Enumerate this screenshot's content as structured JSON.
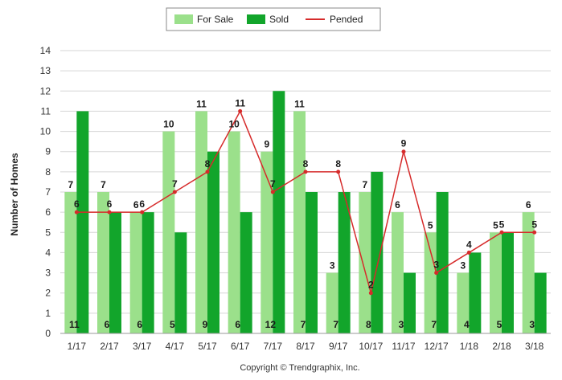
{
  "chart_data": {
    "type": "bar",
    "ylabel": "Number of Homes",
    "xlabel": "",
    "ylim": [
      0,
      14
    ],
    "yticks": [
      0,
      1,
      2,
      3,
      4,
      5,
      6,
      7,
      8,
      9,
      10,
      11,
      12,
      13,
      14
    ],
    "grid": true,
    "legend_position": "top-center",
    "categories": [
      "1/17",
      "2/17",
      "3/17",
      "4/17",
      "5/17",
      "6/17",
      "7/17",
      "8/17",
      "9/17",
      "10/17",
      "11/17",
      "12/17",
      "1/18",
      "2/18",
      "3/18"
    ],
    "series": [
      {
        "name": "For Sale",
        "kind": "bar",
        "color": "#9be08b",
        "values": [
          7,
          7,
          6,
          10,
          11,
          10,
          9,
          11,
          3,
          7,
          6,
          5,
          3,
          5,
          6
        ]
      },
      {
        "name": "Sold",
        "kind": "bar",
        "color": "#12a52b",
        "values": [
          11,
          6,
          6,
          5,
          9,
          6,
          12,
          7,
          7,
          8,
          3,
          7,
          4,
          5,
          3
        ]
      },
      {
        "name": "Pended",
        "kind": "line",
        "color": "#d62b2b",
        "values": [
          6,
          6,
          6,
          7,
          8,
          11,
          7,
          8,
          8,
          2,
          9,
          3,
          4,
          5,
          5
        ]
      }
    ],
    "credit": "Copyright © Trendgraphix, Inc."
  }
}
